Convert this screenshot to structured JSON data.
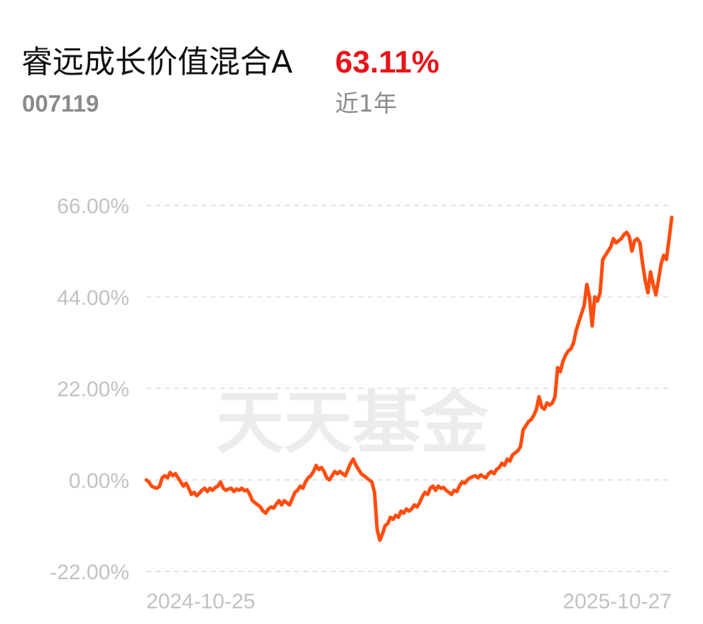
{
  "header": {
    "fund_name": "睿远成长价值混合A",
    "return_value": "63.11%",
    "fund_code": "007119",
    "period_label": "近1年"
  },
  "watermark": "天天基金",
  "colors": {
    "line": "#ff4d0f",
    "return_text": "#e8141a",
    "grid": "#e3e3e3",
    "tick_text": "#c2c2c2"
  },
  "chart_data": {
    "type": "line",
    "title": "",
    "xlabel": "",
    "ylabel": "",
    "ylim": [
      -22,
      66
    ],
    "yticks": [
      66,
      44,
      22,
      0,
      -22
    ],
    "ytick_labels": [
      "66.00%",
      "44.00%",
      "22.00%",
      "0.00%",
      "-22.00%"
    ],
    "x_range": [
      "2024-10-25",
      "2025-10-27"
    ],
    "xtick_labels": [
      "2024-10-25",
      "2025-10-27"
    ],
    "grid": "horizontal dashed",
    "legend": "none",
    "series": [
      {
        "values": [
          0.0,
          -0.5,
          -1.5,
          -1.8,
          -2.0,
          -1.5,
          0.5,
          1.0,
          0.5,
          1.8,
          1.0,
          1.5,
          0.5,
          -0.5,
          -1.5,
          -0.8,
          -2.0,
          -3.5,
          -3.0,
          -3.8,
          -3.2,
          -2.5,
          -2.0,
          -2.8,
          -2.0,
          -2.5,
          -1.8,
          -1.5,
          -0.5,
          -2.0,
          -2.5,
          -2.2,
          -2.0,
          -2.8,
          -2.2,
          -2.5,
          -2.0,
          -2.6,
          -2.4,
          -3.5,
          -5.0,
          -5.5,
          -6.0,
          -6.5,
          -7.5,
          -8.0,
          -7.0,
          -6.5,
          -6.8,
          -5.8,
          -5.0,
          -6.0,
          -5.0,
          -5.5,
          -6.0,
          -4.5,
          -3.0,
          -2.5,
          -1.5,
          -2.0,
          -0.5,
          0.5,
          1.0,
          2.0,
          3.5,
          2.5,
          3.0,
          2.0,
          0.5,
          0.0,
          1.0,
          2.0,
          1.5,
          2.0,
          1.5,
          1.0,
          2.5,
          4.0,
          5.0,
          3.5,
          2.5,
          1.5,
          1.0,
          0.5,
          0.0,
          -0.5,
          -3.0,
          -12.0,
          -14.5,
          -13.0,
          -11.0,
          -10.5,
          -9.0,
          -9.5,
          -8.5,
          -9.0,
          -7.5,
          -8.0,
          -7.0,
          -7.5,
          -7.0,
          -6.0,
          -6.5,
          -5.5,
          -4.0,
          -3.0,
          -3.5,
          -2.0,
          -1.5,
          -2.5,
          -1.5,
          -2.0,
          -1.8,
          -2.5,
          -3.0,
          -3.5,
          -2.5,
          -2.8,
          -1.5,
          -0.5,
          -0.8,
          0.0,
          0.5,
          0.8,
          1.0,
          0.5,
          1.2,
          0.8,
          0.5,
          1.5,
          2.0,
          1.5,
          2.5,
          3.0,
          4.0,
          3.5,
          5.0,
          4.5,
          6.0,
          6.5,
          7.0,
          8.0,
          12.0,
          13.0,
          14.0,
          14.5,
          15.5,
          17.0,
          20.0,
          17.5,
          17.0,
          18.5,
          18.0,
          18.5,
          20.0,
          27.0,
          26.0,
          28.5,
          30.0,
          31.0,
          31.5,
          33.0,
          36.0,
          38.0,
          40.0,
          42.0,
          47.0,
          44.0,
          37.0,
          44.0,
          43.0,
          45.0,
          53.0,
          54.0,
          55.0,
          56.0,
          58.0,
          57.0,
          57.5,
          58.0,
          59.0,
          59.5,
          58.5,
          55.0,
          57.5,
          58.0,
          57.0,
          52.0,
          48.0,
          45.0,
          50.0,
          47.0,
          44.5,
          48.0,
          52.0,
          54.0,
          53.0,
          58.0,
          63.11
        ]
      }
    ]
  }
}
